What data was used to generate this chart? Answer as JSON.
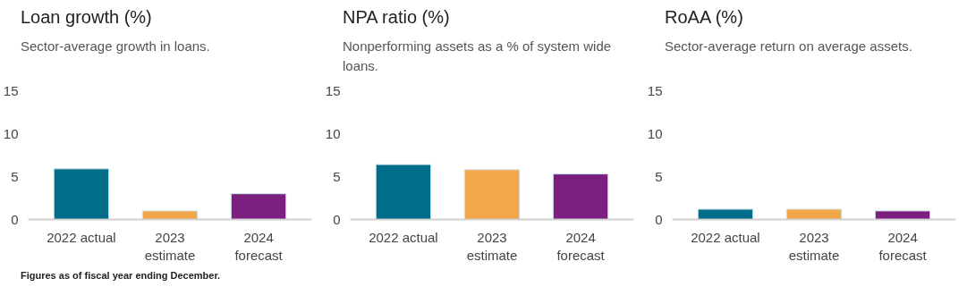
{
  "chart_data": [
    {
      "type": "bar",
      "title": "Loan growth (%)",
      "subtitle": "Sector-average growth in loans.",
      "categories": [
        "2022 actual",
        "2023 estimate",
        "2024 forecast"
      ],
      "values": [
        5.9,
        1.0,
        3.0
      ],
      "colors": [
        "#006d89",
        "#f2a74b",
        "#7a1f7e"
      ],
      "ylim": [
        0,
        15
      ],
      "yticks": [
        0,
        5,
        10,
        15
      ],
      "grid": false
    },
    {
      "type": "bar",
      "title": "NPA ratio (%)",
      "subtitle": "Nonperforming assets as a % of system wide loans.",
      "categories": [
        "2022 actual",
        "2023 estimate",
        "2024 forecast"
      ],
      "values": [
        6.4,
        5.8,
        5.3
      ],
      "colors": [
        "#006d89",
        "#f2a74b",
        "#7a1f7e"
      ],
      "ylim": [
        0,
        15
      ],
      "yticks": [
        0,
        5,
        10,
        15
      ],
      "grid": false
    },
    {
      "type": "bar",
      "title": "RoAA (%)",
      "subtitle": "Sector-average return  on average assets.",
      "categories": [
        "2022 actual",
        "2023 estimate",
        "2024 forecast"
      ],
      "values": [
        1.2,
        1.2,
        1.0
      ],
      "colors": [
        "#006d89",
        "#f2a74b",
        "#7a1f7e"
      ],
      "ylim": [
        0,
        15
      ],
      "yticks": [
        0,
        5,
        10,
        15
      ],
      "grid": false,
      "annotations": [
        "Figures as of fiscal year ending December."
      ]
    }
  ]
}
